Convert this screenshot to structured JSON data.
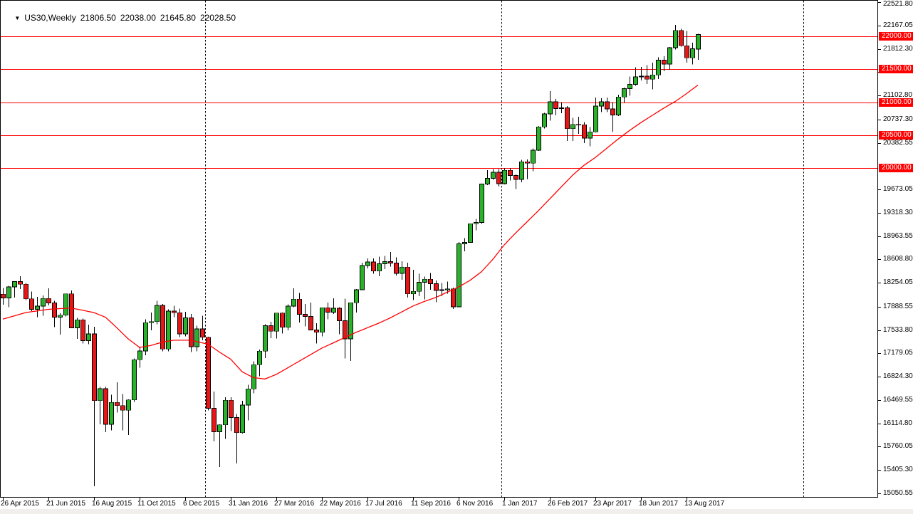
{
  "window": {
    "background": "#ffffff",
    "bottom_strip_color": "#f1efec"
  },
  "title": {
    "dropdown_icon": "triangle-down",
    "symbol_period": "US30,Weekly",
    "open": "21806.50",
    "high": "22038.00",
    "low": "21645.80",
    "close": "22028.50"
  },
  "colors": {
    "up_body": "#29b229",
    "down_body": "#e81717",
    "wick": "#000000",
    "body_outline": "#000000",
    "level_line": "#ff0000",
    "ma_line": "#ff0000",
    "badge_bg": "#ff0000",
    "badge_text": "#ffffff",
    "axis_text": "#000000",
    "separator": "#000000",
    "border": "#000000"
  },
  "chart_data": {
    "type": "candlestick",
    "title": "US30,Weekly",
    "symbol": "US30",
    "timeframe": "Weekly",
    "grid": "vertical-year-separators-only",
    "legend_position": "none",
    "ylim": [
      15050.55,
      22521.8
    ],
    "y_axis_ticks": [
      22521.8,
      22167.05,
      21812.3,
      21457.55,
      21102.8,
      20737.3,
      20382.55,
      19673.05,
      19318.3,
      18963.55,
      18608.8,
      18254.05,
      17888.55,
      17533.8,
      17179.05,
      16824.3,
      16469.55,
      16114.8,
      15760.05,
      15405.3,
      15050.55
    ],
    "horizontal_lines": [
      {
        "price": 22000.0,
        "label": "22000.00"
      },
      {
        "price": 21500.0,
        "label": "21500.00"
      },
      {
        "price": 21000.0,
        "label": "21000.00"
      },
      {
        "price": 20500.0,
        "label": "20500.00"
      },
      {
        "price": 20000.0,
        "label": "20000.00"
      }
    ],
    "x_labels": [
      {
        "index": 0,
        "text": "26 Apr 2015"
      },
      {
        "index": 8,
        "text": "21 Jun 2015"
      },
      {
        "index": 16,
        "text": "16 Aug 2015"
      },
      {
        "index": 24,
        "text": "11 Oct 2015"
      },
      {
        "index": 32,
        "text": "6 Dec 2015"
      },
      {
        "index": 40,
        "text": "31 Jan 2016"
      },
      {
        "index": 48,
        "text": "27 Mar 2016"
      },
      {
        "index": 56,
        "text": "22 May 2016"
      },
      {
        "index": 64,
        "text": "17 Jul 2016"
      },
      {
        "index": 72,
        "text": "11 Sep 2016"
      },
      {
        "index": 80,
        "text": "6 Nov 2016"
      },
      {
        "index": 88,
        "text": "1 Jan 2017"
      },
      {
        "index": 96,
        "text": "26 Feb 2017"
      },
      {
        "index": 104,
        "text": "23 Apr 2017"
      },
      {
        "index": 112,
        "text": "18 Jun 2017"
      },
      {
        "index": 120,
        "text": "13 Aug 2017"
      }
    ],
    "year_separator_indices": [
      35.5,
      87.5,
      140.5
    ],
    "candles": [
      [
        18080,
        18175,
        17920,
        18024
      ],
      [
        18024,
        18205,
        17880,
        18191
      ],
      [
        18191,
        18273,
        18030,
        18272
      ],
      [
        18272,
        18351,
        18160,
        18232
      ],
      [
        18232,
        18250,
        17990,
        18010
      ],
      [
        18010,
        18120,
        17820,
        17849
      ],
      [
        17849,
        18040,
        17730,
        17898
      ],
      [
        17898,
        18060,
        17750,
        18015
      ],
      [
        18015,
        18167,
        17910,
        17946
      ],
      [
        17946,
        17980,
        17580,
        17730
      ],
      [
        17730,
        17790,
        17465,
        17760
      ],
      [
        17760,
        18090,
        17740,
        18086
      ],
      [
        18086,
        18137,
        17560,
        17568
      ],
      [
        17568,
        17720,
        17400,
        17690
      ],
      [
        17690,
        17710,
        17330,
        17373
      ],
      [
        17373,
        17615,
        17320,
        17477
      ],
      [
        17477,
        17585,
        15160,
        16460
      ],
      [
        16460,
        16670,
        16100,
        16643
      ],
      [
        16643,
        16670,
        15980,
        16102
      ],
      [
        16102,
        16550,
        16010,
        16433
      ],
      [
        16433,
        16740,
        16280,
        16385
      ],
      [
        16385,
        16560,
        16010,
        16315
      ],
      [
        16315,
        16480,
        15940,
        16472
      ],
      [
        16472,
        17100,
        16440,
        17084
      ],
      [
        17084,
        17280,
        16960,
        17215
      ],
      [
        17215,
        17700,
        17150,
        17646
      ],
      [
        17646,
        17800,
        17530,
        17663
      ],
      [
        17663,
        17980,
        17620,
        17910
      ],
      [
        17910,
        17930,
        17210,
        17245
      ],
      [
        17245,
        17850,
        17210,
        17823
      ],
      [
        17823,
        17905,
        17730,
        17798
      ],
      [
        17798,
        17860,
        17425,
        17475
      ],
      [
        17475,
        17810,
        17440,
        17720
      ],
      [
        17720,
        17780,
        17200,
        17280
      ],
      [
        17280,
        17600,
        17210,
        17552
      ],
      [
        17552,
        17750,
        17380,
        17425
      ],
      [
        17425,
        17430,
        16314,
        16346
      ],
      [
        16346,
        16600,
        15842,
        15988
      ],
      [
        15988,
        16100,
        15450,
        16093
      ],
      [
        16093,
        16510,
        15880,
        16466
      ],
      [
        16466,
        16511,
        16000,
        16205
      ],
      [
        16205,
        16260,
        15503,
        15974
      ],
      [
        15974,
        16460,
        15960,
        16392
      ],
      [
        16392,
        16700,
        16160,
        16640
      ],
      [
        16640,
        17060,
        16570,
        17007
      ],
      [
        17007,
        17240,
        16830,
        17213
      ],
      [
        17213,
        17620,
        17110,
        17602
      ],
      [
        17602,
        17660,
        17410,
        17516
      ],
      [
        17516,
        17790,
        17405,
        17793
      ],
      [
        17793,
        17800,
        17484,
        17577
      ],
      [
        17577,
        17926,
        17530,
        17897
      ],
      [
        17897,
        18168,
        17880,
        18004
      ],
      [
        18004,
        18100,
        17650,
        17774
      ],
      [
        17774,
        17930,
        17590,
        17740
      ],
      [
        17740,
        17950,
        17530,
        17535
      ],
      [
        17535,
        17640,
        17330,
        17500
      ],
      [
        17500,
        17875,
        17440,
        17873
      ],
      [
        17873,
        17950,
        17700,
        17807
      ],
      [
        17807,
        18016,
        17780,
        17865
      ],
      [
        17865,
        17880,
        17470,
        17675
      ],
      [
        17675,
        18011,
        17100,
        17400
      ],
      [
        17400,
        17950,
        17063,
        17949
      ],
      [
        17949,
        18158,
        17800,
        18147
      ],
      [
        18147,
        18557,
        18140,
        18517
      ],
      [
        18517,
        18622,
        18470,
        18571
      ],
      [
        18571,
        18622,
        18390,
        18432
      ],
      [
        18432,
        18650,
        18355,
        18543
      ],
      [
        18543,
        18660,
        18460,
        18576
      ],
      [
        18576,
        18720,
        18500,
        18553
      ],
      [
        18553,
        18640,
        18365,
        18395
      ],
      [
        18395,
        18580,
        18300,
        18492
      ],
      [
        18492,
        18560,
        18030,
        18085
      ],
      [
        18085,
        18450,
        17990,
        18123
      ],
      [
        18123,
        18390,
        18050,
        18261
      ],
      [
        18261,
        18350,
        18000,
        18308
      ],
      [
        18308,
        18400,
        18150,
        18240
      ],
      [
        18240,
        18290,
        17960,
        18138
      ],
      [
        18138,
        18250,
        18050,
        18146
      ],
      [
        18146,
        18270,
        18090,
        18161
      ],
      [
        18161,
        18180,
        17853,
        17888
      ],
      [
        17888,
        18873,
        17883,
        18847
      ],
      [
        18847,
        18934,
        18730,
        18867
      ],
      [
        18867,
        19152,
        18860,
        19152
      ],
      [
        19152,
        19225,
        19050,
        19170
      ],
      [
        19170,
        19757,
        19150,
        19756
      ],
      [
        19756,
        19966,
        19740,
        19843
      ],
      [
        19843,
        19980,
        19820,
        19933
      ],
      [
        19933,
        19980,
        19718,
        19762
      ],
      [
        19762,
        19999,
        19750,
        19963
      ],
      [
        19963,
        19999,
        19811,
        19885
      ],
      [
        19885,
        19900,
        19677,
        19827
      ],
      [
        19827,
        20125,
        19784,
        20093
      ],
      [
        20093,
        20130,
        19831,
        20071
      ],
      [
        20071,
        20298,
        19952,
        20269
      ],
      [
        20269,
        20639,
        20260,
        20624
      ],
      [
        20624,
        20840,
        20600,
        20822
      ],
      [
        20822,
        21169,
        20720,
        21005
      ],
      [
        21005,
        21050,
        20800,
        20903
      ],
      [
        20903,
        21000,
        20830,
        20914
      ],
      [
        20914,
        20940,
        20412,
        20597
      ],
      [
        20597,
        20760,
        20413,
        20663
      ],
      [
        20663,
        20780,
        20520,
        20656
      ],
      [
        20656,
        20700,
        20380,
        20453
      ],
      [
        20453,
        20620,
        20330,
        20548
      ],
      [
        20548,
        21070,
        20540,
        20940
      ],
      [
        20940,
        21058,
        20850,
        21006
      ],
      [
        21006,
        21070,
        20850,
        20896
      ],
      [
        20896,
        21000,
        20553,
        20804
      ],
      [
        20804,
        21112,
        20790,
        21080
      ],
      [
        21080,
        21225,
        20994,
        21206
      ],
      [
        21206,
        21391,
        21100,
        21272
      ],
      [
        21272,
        21529,
        21250,
        21384
      ],
      [
        21384,
        21535,
        21330,
        21395
      ],
      [
        21395,
        21562,
        21279,
        21350
      ],
      [
        21350,
        21600,
        21197,
        21414
      ],
      [
        21414,
        21681,
        21350,
        21638
      ],
      [
        21638,
        21698,
        21471,
        21580
      ],
      [
        21580,
        21841,
        21495,
        21830
      ],
      [
        21830,
        22175,
        21800,
        22092
      ],
      [
        22092,
        22118,
        21844,
        21858
      ],
      [
        21858,
        22085,
        21600,
        21675
      ],
      [
        21675,
        21905,
        21575,
        21814
      ],
      [
        21806.5,
        22038,
        21645.8,
        22028.5
      ]
    ],
    "ma_keypoints": [
      [
        0,
        17700
      ],
      [
        4,
        17800
      ],
      [
        8,
        17850
      ],
      [
        12,
        17870
      ],
      [
        16,
        17800
      ],
      [
        18,
        17730
      ],
      [
        20,
        17570
      ],
      [
        22,
        17400
      ],
      [
        24,
        17270
      ],
      [
        26,
        17300
      ],
      [
        28,
        17350
      ],
      [
        30,
        17380
      ],
      [
        33,
        17380
      ],
      [
        36,
        17320
      ],
      [
        38,
        17200
      ],
      [
        40,
        17090
      ],
      [
        42,
        16900
      ],
      [
        44,
        16810
      ],
      [
        46,
        16790
      ],
      [
        48,
        16860
      ],
      [
        50,
        16960
      ],
      [
        52,
        17060
      ],
      [
        54,
        17160
      ],
      [
        56,
        17260
      ],
      [
        58,
        17340
      ],
      [
        60,
        17420
      ],
      [
        62,
        17500
      ],
      [
        64,
        17570
      ],
      [
        66,
        17640
      ],
      [
        68,
        17720
      ],
      [
        70,
        17810
      ],
      [
        72,
        17900
      ],
      [
        74,
        17970
      ],
      [
        76,
        18030
      ],
      [
        78,
        18110
      ],
      [
        80,
        18190
      ],
      [
        82,
        18290
      ],
      [
        84,
        18420
      ],
      [
        86,
        18610
      ],
      [
        88,
        18830
      ],
      [
        90,
        19010
      ],
      [
        92,
        19180
      ],
      [
        94,
        19350
      ],
      [
        96,
        19530
      ],
      [
        98,
        19710
      ],
      [
        100,
        19890
      ],
      [
        102,
        20040
      ],
      [
        104,
        20160
      ],
      [
        106,
        20300
      ],
      [
        108,
        20440
      ],
      [
        110,
        20570
      ],
      [
        112,
        20690
      ],
      [
        114,
        20800
      ],
      [
        116,
        20910
      ],
      [
        118,
        21010
      ],
      [
        120,
        21130
      ],
      [
        122,
        21260
      ]
    ]
  }
}
